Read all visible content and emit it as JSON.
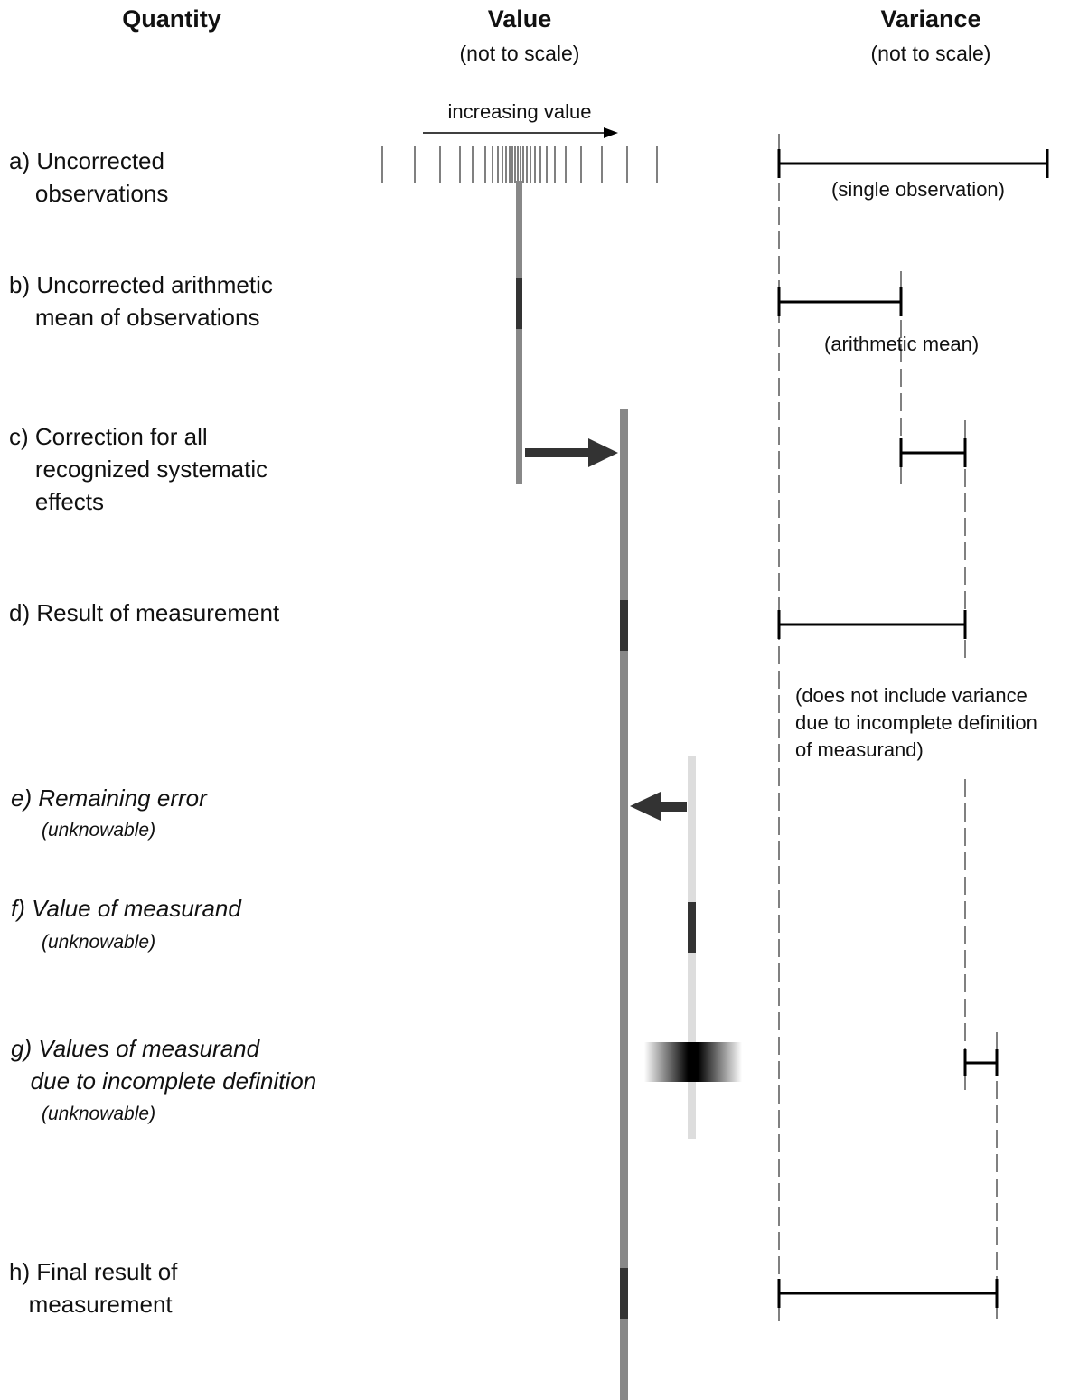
{
  "headers": {
    "quantity": "Quantity",
    "value": "Value",
    "value_sub": "(not to scale)",
    "variance": "Variance",
    "variance_sub": "(not to scale)"
  },
  "axis": {
    "label": "increasing value"
  },
  "rows": {
    "a": {
      "label": "a) Uncorrected\n    observations"
    },
    "b": {
      "label": "b) Uncorrected arithmetic\n    mean of observations"
    },
    "c": {
      "label": "c) Correction for all\n    recognized systematic\n    effects"
    },
    "d": {
      "label": "d) Result of measurement"
    },
    "e": {
      "label": "e) Remaining error",
      "sub": "(unknowable)"
    },
    "f": {
      "label": "f) Value of measurand",
      "sub": "(unknowable)"
    },
    "g": {
      "label": "g) Values of measurand\n   due to incomplete definition",
      "sub": "(unknowable)"
    },
    "h": {
      "label": "h) Final result of\n   measurement"
    }
  },
  "notes": {
    "single": "(single observation)",
    "mean": "(arithmetic mean)",
    "definition": "(does not include variance\ndue to incomplete definition\nof measurand)"
  },
  "colors": {
    "light_bar": "#dddddd",
    "mid_bar": "#888888",
    "dark_bar": "#333333",
    "line": "#000000"
  }
}
